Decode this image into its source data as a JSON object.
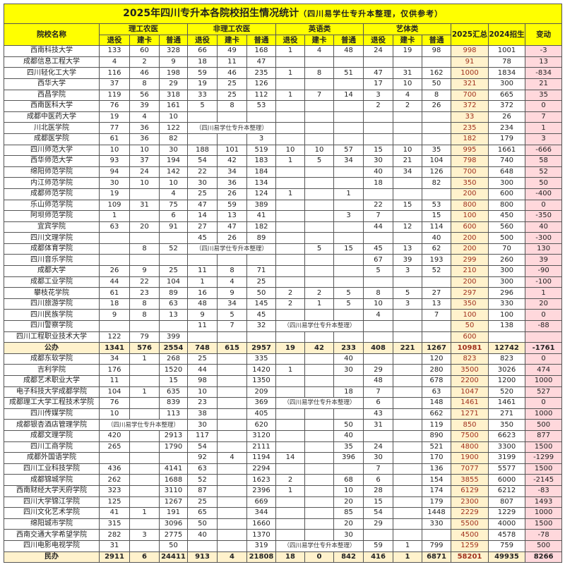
{
  "title": "2025年四川专升本各院校招生情况统计",
  "subtitle": "（四川易学仕专升本整理，仅供参考）",
  "header": {
    "name": "院校名称",
    "groups": [
      "理工农医",
      "非理工农医",
      "英语类",
      "艺体类"
    ],
    "subcols": [
      "退役",
      "建卡",
      "普通"
    ],
    "sum2025": "2025汇总",
    "enroll2024": "2024招生",
    "change": "变动"
  },
  "colors": {
    "title_bg": "#ffff00",
    "sum2025_bg": "#fff2cc",
    "change_bg": "#ffd8dc",
    "total_bg": "#fff2cc"
  },
  "rows": [
    {
      "name": "西南科技大学",
      "cells": [
        "133",
        "60",
        "328",
        "66",
        "49",
        "168",
        "1",
        "4",
        "48",
        "24",
        "19",
        "98"
      ],
      "sum2025": "998",
      "y2024": "1001",
      "change": "-3"
    },
    {
      "name": "成都信息工程大学",
      "cells": [
        "4",
        "2",
        "9",
        "18",
        "11",
        "47",
        "",
        "",
        "",
        "",
        "",
        ""
      ],
      "sum2025": "91",
      "y2024": "78",
      "change": "13"
    },
    {
      "name": "四川轻化工大学",
      "cells": [
        "116",
        "46",
        "198",
        "59",
        "46",
        "235",
        "1",
        "8",
        "51",
        "47",
        "31",
        "162"
      ],
      "sum2025": "1000",
      "y2024": "1834",
      "change": "-834"
    },
    {
      "name": "西华大学",
      "cells": [
        "37",
        "8",
        "29",
        "19",
        "25",
        "126",
        "",
        "",
        "",
        "17",
        "10",
        "50"
      ],
      "sum2025": "321",
      "y2024": "300",
      "change": "21"
    },
    {
      "name": "西昌学院",
      "cells": [
        "119",
        "56",
        "318",
        "33",
        "25",
        "112",
        "1",
        "7",
        "14",
        "3",
        "4",
        "8"
      ],
      "sum2025": "700",
      "y2024": "665",
      "change": "35"
    },
    {
      "name": "西南医科大学",
      "cells": [
        "76",
        "39",
        "161",
        "5",
        "8",
        "53",
        "",
        "",
        "",
        "2",
        "2",
        "26"
      ],
      "sum2025": "372",
      "y2024": "372",
      "change": "0"
    },
    {
      "name": "成都中医药大学",
      "cells": [
        "19",
        "4",
        "10",
        "",
        "",
        "",
        "",
        "",
        "",
        "",
        "",
        ""
      ],
      "sum2025": "33",
      "y2024": "26",
      "change": "7"
    },
    {
      "name": "川北医学院",
      "cells": [
        "77",
        "36",
        "122",
        "",
        "",
        "",
        "",
        "",
        "",
        "",
        "",
        ""
      ],
      "note": {
        "col": 3,
        "span": 3,
        "text": "（四川易学仕专升本整理）"
      },
      "sum2025": "235",
      "y2024": "234",
      "change": "1"
    },
    {
      "name": "成都医学院",
      "cells": [
        "61",
        "36",
        "82",
        "",
        "",
        "3",
        "",
        "",
        "",
        "",
        "",
        ""
      ],
      "sum2025": "182",
      "y2024": "179",
      "change": "3"
    },
    {
      "name": "四川师范大学",
      "cells": [
        "10",
        "10",
        "30",
        "188",
        "101",
        "519",
        "10",
        "10",
        "57",
        "15",
        "10",
        "35"
      ],
      "sum2025": "995",
      "y2024": "1661",
      "change": "-666"
    },
    {
      "name": "西华师范大学",
      "cells": [
        "93",
        "37",
        "194",
        "54",
        "42",
        "183",
        "1",
        "5",
        "34",
        "30",
        "21",
        "104"
      ],
      "sum2025": "798",
      "y2024": "740",
      "change": "58"
    },
    {
      "name": "绵阳师范学院",
      "cells": [
        "94",
        "24",
        "142",
        "22",
        "34",
        "184",
        "",
        "",
        "",
        "40",
        "34",
        "126"
      ],
      "sum2025": "700",
      "y2024": "648",
      "change": "52"
    },
    {
      "name": "内江师范学院",
      "cells": [
        "30",
        "10",
        "10",
        "30",
        "36",
        "134",
        "",
        "",
        "",
        "18",
        "",
        "82"
      ],
      "sum2025": "350",
      "y2024": "300",
      "change": "50"
    },
    {
      "name": "成都师范学院",
      "cells": [
        "19",
        "",
        "4",
        "25",
        "26",
        "124",
        "1",
        "",
        "1",
        "",
        "",
        ""
      ],
      "sum2025": "200",
      "y2024": "600",
      "change": "-400"
    },
    {
      "name": "乐山师范学院",
      "cells": [
        "109",
        "31",
        "75",
        "47",
        "59",
        "389",
        "",
        "",
        "",
        "22",
        "15",
        "53"
      ],
      "sum2025": "800",
      "y2024": "800",
      "change": "0"
    },
    {
      "name": "阿坝师范学院",
      "cells": [
        "1",
        "",
        "6",
        "14",
        "13",
        "41",
        "",
        "",
        "3",
        "7",
        "",
        "15"
      ],
      "sum2025": "100",
      "y2024": "450",
      "change": "-350"
    },
    {
      "name": "宜宾学院",
      "cells": [
        "63",
        "20",
        "91",
        "27",
        "47",
        "182",
        "",
        "",
        "",
        "44",
        "12",
        "114"
      ],
      "sum2025": "600",
      "y2024": "560",
      "change": "40"
    },
    {
      "name": "四川文理学院",
      "cells": [
        "",
        "",
        "",
        "45",
        "26",
        "89",
        "",
        "",
        "",
        "",
        "",
        "40"
      ],
      "sum2025": "200",
      "y2024": "500",
      "change": "-300"
    },
    {
      "name": "成都体育学院",
      "cells": [
        "",
        "8",
        "52",
        "",
        "",
        "",
        "",
        "5",
        "15",
        "45",
        "13",
        "62"
      ],
      "note": {
        "col": 3,
        "span": 3,
        "text": "（四川易学仕专升本整理）"
      },
      "sum2025": "200",
      "y2024": "70",
      "change": "130"
    },
    {
      "name": "四川音乐学院",
      "cells": [
        "",
        "",
        "",
        "",
        "",
        "",
        "",
        "",
        "",
        "67",
        "39",
        "193"
      ],
      "sum2025": "299",
      "y2024": "260",
      "change": "39"
    },
    {
      "name": "成都大学",
      "cells": [
        "26",
        "9",
        "25",
        "11",
        "8",
        "71",
        "",
        "",
        "",
        "5",
        "3",
        "52"
      ],
      "sum2025": "210",
      "y2024": "300",
      "change": "-90"
    },
    {
      "name": "成都工业学院",
      "cells": [
        "44",
        "22",
        "104",
        "1",
        "4",
        "25",
        "",
        "",
        "",
        "",
        "",
        ""
      ],
      "sum2025": "200",
      "y2024": "300",
      "change": "-100"
    },
    {
      "name": "攀枝花学院",
      "cells": [
        "61",
        "23",
        "89",
        "16",
        "9",
        "50",
        "2",
        "2",
        "5",
        "8",
        "5",
        "27"
      ],
      "sum2025": "297",
      "y2024": "296",
      "change": "1"
    },
    {
      "name": "四川旅游学院",
      "cells": [
        "18",
        "8",
        "63",
        "48",
        "34",
        "145",
        "2",
        "1",
        "5",
        "10",
        "3",
        "13"
      ],
      "sum2025": "350",
      "y2024": "330",
      "change": "20"
    },
    {
      "name": "四川民族学院",
      "cells": [
        "9",
        "8",
        "13",
        "9",
        "5",
        "45",
        "",
        "",
        "",
        "4",
        "",
        "7"
      ],
      "sum2025": "100",
      "y2024": "100",
      "change": "0"
    },
    {
      "name": "四川警察学院",
      "cells": [
        "",
        "",
        "",
        "11",
        "7",
        "32",
        "",
        "",
        "",
        "",
        "",
        ""
      ],
      "note": {
        "col": 6,
        "span": 3,
        "text": "（四川易学仕专升本整理）"
      },
      "sum2025": "50",
      "y2024": "138",
      "change": "-88"
    },
    {
      "name": "四川工程职业技术大学",
      "cells": [
        "122",
        "79",
        "399",
        "",
        "",
        "",
        "",
        "",
        "",
        "",
        "",
        ""
      ],
      "sum2025": "600",
      "y2024": "",
      "change": ""
    },
    {
      "name": "公办",
      "total": true,
      "cells": [
        "1341",
        "576",
        "2554",
        "748",
        "615",
        "2957",
        "19",
        "42",
        "233",
        "408",
        "221",
        "1267"
      ],
      "sum2025": "10981",
      "y2024": "12742",
      "change": "-1761"
    },
    {
      "name": "成都东软学院",
      "cells": [
        "34",
        "1",
        "268",
        "25",
        "",
        "335",
        "",
        "",
        "40",
        "",
        "",
        "120"
      ],
      "sum2025": "823",
      "y2024": "823",
      "change": "0"
    },
    {
      "name": "吉利学院",
      "cells": [
        "176",
        "",
        "1520",
        "44",
        "",
        "1420",
        "1",
        "",
        "30",
        "29",
        "",
        "280"
      ],
      "sum2025": "3500",
      "y2024": "3026",
      "change": "474"
    },
    {
      "name": "成都艺术职业大学",
      "cells": [
        "11",
        "",
        "15",
        "98",
        "",
        "1350",
        "",
        "",
        "",
        "48",
        "",
        "678"
      ],
      "sum2025": "2200",
      "y2024": "1200",
      "change": "1000"
    },
    {
      "name": "电子科技大学成都学院",
      "cells": [
        "104",
        "1",
        "635",
        "10",
        "",
        "209",
        "",
        "",
        "18",
        "7",
        "",
        "63"
      ],
      "sum2025": "1047",
      "y2024": "520",
      "change": "527"
    },
    {
      "name": "成都理工大学工程技术学院",
      "cells": [
        "76",
        "",
        "839",
        "23",
        "",
        "369",
        "",
        "",
        "",
        "6",
        "",
        "148"
      ],
      "note": {
        "col": 6,
        "span": 3,
        "text": "（四川易学仕专升本整理）"
      },
      "sum2025": "1461",
      "y2024": "1461",
      "change": "0"
    },
    {
      "name": "四川传媒学院",
      "cells": [
        "10",
        "",
        "113",
        "38",
        "",
        "405",
        "",
        "",
        "",
        "43",
        "",
        "662"
      ],
      "sum2025": "1271",
      "y2024": "271",
      "change": "1000"
    },
    {
      "name": "成都银杏酒店管理学院",
      "cells": [
        "",
        "",
        "",
        "30",
        "",
        "620",
        "",
        "",
        "50",
        "31",
        "",
        "119"
      ],
      "note": {
        "col": 0,
        "span": 3,
        "text": "（四川易学仕专升本整理）"
      },
      "sum2025": "850",
      "y2024": "350",
      "change": "500"
    },
    {
      "name": "成都文理学院",
      "cells": [
        "420",
        "",
        "2913",
        "117",
        "",
        "3120",
        "",
        "",
        "40",
        "",
        "",
        "890"
      ],
      "sum2025": "7500",
      "y2024": "6623",
      "change": "877"
    },
    {
      "name": "四川工商学院",
      "cells": [
        "265",
        "",
        "1790",
        "54",
        "",
        "2111",
        "",
        "",
        "35",
        "24",
        "",
        "521"
      ],
      "sum2025": "4800",
      "y2024": "3300",
      "change": "1500"
    },
    {
      "name": "成都外国语学院",
      "cells": [
        "",
        "",
        "",
        "92",
        "4",
        "1194",
        "14",
        "",
        "396",
        "30",
        "",
        "170"
      ],
      "sum2025": "1900",
      "y2024": "3199",
      "change": "-1299"
    },
    {
      "name": "四川工业科技学院",
      "cells": [
        "436",
        "",
        "4141",
        "63",
        "",
        "2294",
        "",
        "",
        "",
        "7",
        "",
        "136"
      ],
      "sum2025": "7077",
      "y2024": "5577",
      "change": "1500"
    },
    {
      "name": "成都锦城学院",
      "cells": [
        "262",
        "",
        "1688",
        "52",
        "",
        "1623",
        "2",
        "",
        "68",
        "6",
        "",
        "154"
      ],
      "sum2025": "3855",
      "y2024": "6000",
      "change": "-2145"
    },
    {
      "name": "西南财经大学天府学院",
      "cells": [
        "323",
        "",
        "3110",
        "87",
        "",
        "2396",
        "1",
        "",
        "10",
        "28",
        "",
        "174"
      ],
      "sum2025": "6129",
      "y2024": "6212",
      "change": "-83"
    },
    {
      "name": "四川大学锦江学院",
      "cells": [
        "125",
        "",
        "1267",
        "25",
        "",
        "669",
        "",
        "",
        "20",
        "15",
        "",
        "179"
      ],
      "sum2025": "2300",
      "y2024": "807",
      "change": "1493"
    },
    {
      "name": "四川文化艺术学院",
      "cells": [
        "41",
        "1",
        "191",
        "65",
        "",
        "344",
        "",
        "",
        "85",
        "54",
        "",
        "1448"
      ],
      "sum2025": "2229",
      "y2024": "1229",
      "change": "1000"
    },
    {
      "name": "绵阳城市学院",
      "cells": [
        "315",
        "",
        "3096",
        "50",
        "",
        "1660",
        "",
        "",
        "20",
        "29",
        "",
        "330"
      ],
      "sum2025": "5500",
      "y2024": "4000",
      "change": "1500"
    },
    {
      "name": "西南交通大学希望学院",
      "cells": [
        "282",
        "3",
        "2775",
        "40",
        "",
        "1370",
        "",
        "",
        "30",
        "",
        "",
        ""
      ],
      "sum2025": "4500",
      "y2024": "4578",
      "change": "-78"
    },
    {
      "name": "四川电影电视学院",
      "cells": [
        "31",
        "",
        "50",
        "",
        "",
        "319",
        "",
        "",
        "",
        "59",
        "1",
        "799"
      ],
      "note": {
        "col": 6,
        "span": 3,
        "text": "（四川易学仕专升本整理）"
      },
      "sum2025": "1259",
      "y2024": "759",
      "change": "500"
    },
    {
      "name": "民办",
      "total": true,
      "cells": [
        "2911",
        "6",
        "24411",
        "913",
        "4",
        "21808",
        "18",
        "0",
        "842",
        "416",
        "1",
        "6871"
      ],
      "sum2025": "58201",
      "y2024": "49935",
      "change": "8266"
    }
  ]
}
